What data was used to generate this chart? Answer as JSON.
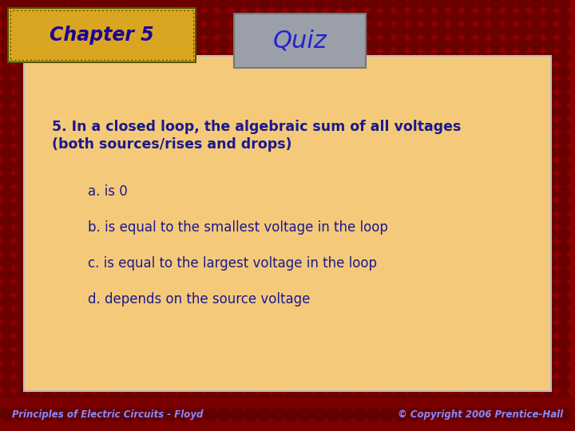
{
  "bg_color": "#8B0000",
  "content_box_color": "#F5C97A",
  "chapter_box_color_top": "#DAA520",
  "chapter_box_color_bot": "#C8860A",
  "quiz_box_color": "#9B9FAA",
  "chapter_text": "Chapter 5",
  "chapter_text_color": "#1A0099",
  "quiz_text": "Quiz",
  "quiz_text_color": "#2222CC",
  "question_text_line1": "5. In a closed loop, the algebraic sum of all voltages",
  "question_text_line2": "(both sources/rises and drops)",
  "answers": [
    "a. is 0",
    "b. is equal to the smallest voltage in the loop",
    "c. is equal to the largest voltage in the loop",
    "d. depends on the source voltage"
  ],
  "text_color": "#1A1A8C",
  "footer_left": "Principles of Electric Circuits - Floyd",
  "footer_right": "© Copyright 2006 Prentice-Hall",
  "footer_color": "#8888FF",
  "question_fontsize": 12.5,
  "answer_fontsize": 12,
  "chapter_fontsize": 17,
  "quiz_fontsize": 22,
  "footer_fontsize": 8.5
}
